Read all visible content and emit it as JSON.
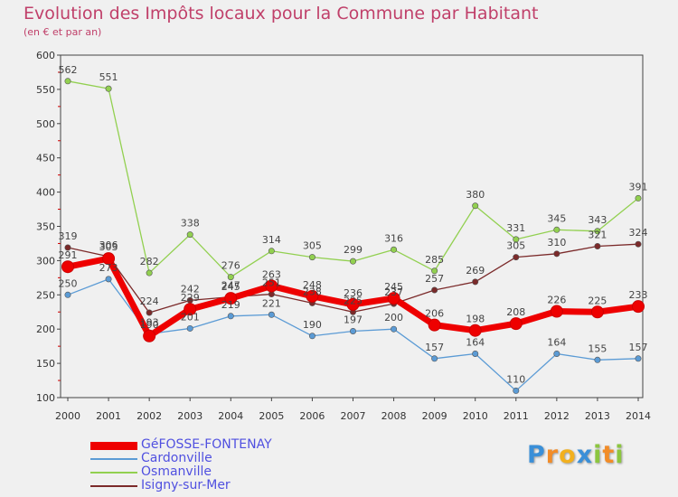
{
  "chart_data": {
    "type": "line",
    "title": "Evolution des Impôts locaux pour la Commune par Habitant",
    "subtitle": "(en € et par an)",
    "x": [
      "2000",
      "2001",
      "2002",
      "2003",
      "2004",
      "2005",
      "2006",
      "2007",
      "2008",
      "2009",
      "2010",
      "2011",
      "2012",
      "2013",
      "2014"
    ],
    "ylim": [
      100,
      600
    ],
    "yticks": [
      "100",
      "150",
      "200",
      "250",
      "300",
      "350",
      "400",
      "450",
      "500",
      "550",
      "600"
    ],
    "grid": false,
    "legend_position": "bottom-left",
    "series": [
      {
        "name": "GéFOSSE-FONTENAY",
        "color": "#ee0000",
        "values": [
          291,
          303,
          190,
          229,
          245,
          263,
          248,
          236,
          245,
          206,
          198,
          208,
          226,
          225,
          233
        ],
        "labels": [
          "291",
          "303",
          "190",
          "229",
          "245",
          "263",
          "248",
          "236",
          "245",
          "206",
          "198",
          "208",
          "226",
          "225",
          "233"
        ]
      },
      {
        "name": "Cardonville",
        "color": "#5b9bd5",
        "values": [
          250,
          273,
          193,
          201,
          219,
          221,
          190,
          197,
          200,
          157,
          164,
          110,
          164,
          155,
          157
        ],
        "labels": [
          "250",
          "273",
          "193",
          "201",
          "219",
          "221",
          "190",
          "197",
          "200",
          "157",
          "164",
          "110",
          "164",
          "155",
          "157"
        ]
      },
      {
        "name": "Osmanville",
        "color": "#92d050",
        "values": [
          562,
          551,
          282,
          338,
          276,
          314,
          305,
          299,
          316,
          285,
          380,
          331,
          345,
          343,
          391
        ],
        "labels": [
          "562",
          "551",
          "282",
          "338",
          "276",
          "314",
          "305",
          "299",
          "316",
          "285",
          "380",
          "331",
          "345",
          "343",
          "391"
        ]
      },
      {
        "name": "Isigny-sur-Mer",
        "color": "#7b2a2a",
        "values": [
          319,
          306,
          224,
          242,
          247,
          251,
          238,
          225,
          237,
          257,
          269,
          305,
          310,
          321,
          324
        ],
        "labels": [
          "319",
          "306",
          "224",
          "242",
          "247",
          "251",
          "238",
          "225",
          "237",
          "257",
          "269",
          "305",
          "310",
          "321",
          "324"
        ]
      }
    ]
  },
  "logo": {
    "letters": [
      "P",
      "r",
      "o",
      "x",
      "i",
      "t",
      "i"
    ],
    "colors": [
      "#3a8fd8",
      "#f28c28",
      "#f2b01e",
      "#3a8fd8",
      "#8cc63f",
      "#f28c28",
      "#8cc63f"
    ]
  }
}
